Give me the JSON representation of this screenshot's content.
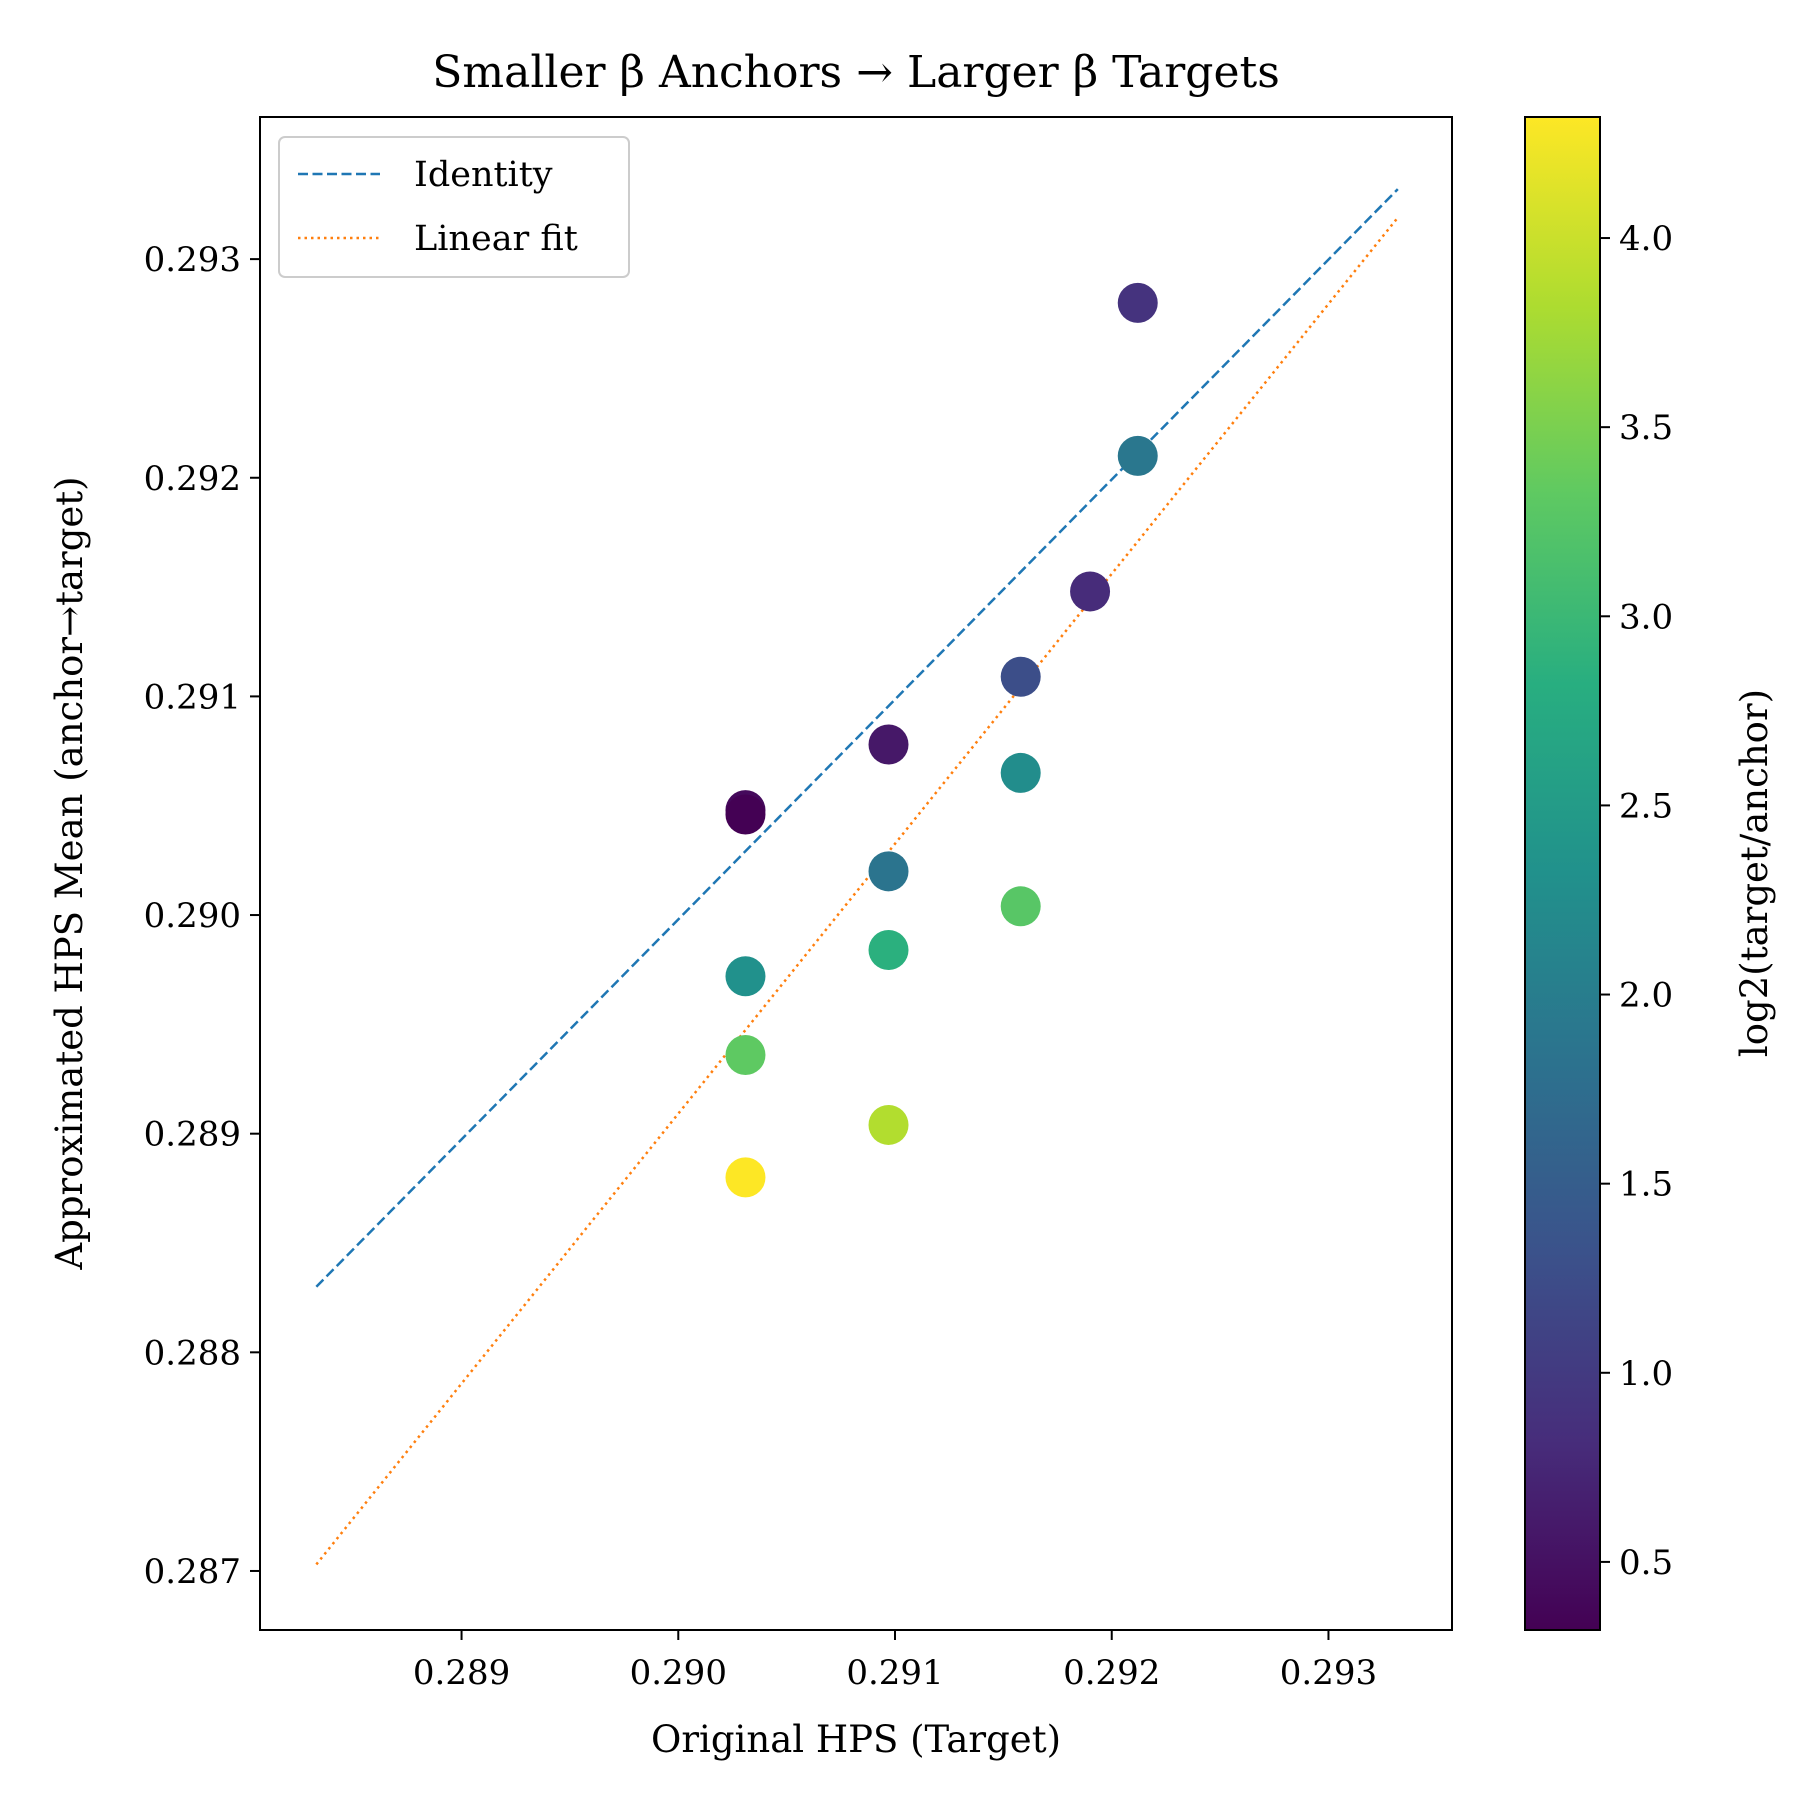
{
  "chart_data": {
    "type": "scatter",
    "title": "Smaller β Anchors → Larger β Targets",
    "xlabel": "Original HPS (Target)",
    "ylabel": "Approximated HPS Mean (anchor→target)",
    "xlim": [
      0.28807,
      0.29357
    ],
    "ylim": [
      0.28673,
      0.29365
    ],
    "xticks": [
      0.289,
      0.29,
      0.291,
      0.292,
      0.293
    ],
    "xtick_labels": [
      "0.289",
      "0.290",
      "0.291",
      "0.292",
      "0.293"
    ],
    "yticks": [
      0.287,
      0.288,
      0.289,
      0.29,
      0.291,
      0.292,
      0.293
    ],
    "ytick_labels": [
      "0.287",
      "0.288",
      "0.289",
      "0.290",
      "0.291",
      "0.292",
      "0.293"
    ],
    "colorbar": {
      "label": "log2(target/anchor)",
      "colormap": "viridis",
      "range": [
        0.32,
        4.32
      ],
      "ticks": [
        0.5,
        1.0,
        1.5,
        2.0,
        2.5,
        3.0,
        3.5,
        4.0
      ],
      "tick_labels": [
        "0.5",
        "1.0",
        "1.5",
        "2.0",
        "2.5",
        "3.0",
        "3.5",
        "4.0"
      ]
    },
    "points": [
      {
        "x": 0.29031,
        "y": 0.29048,
        "c": 0.42
      },
      {
        "x": 0.29031,
        "y": 0.29046,
        "c": 0.32
      },
      {
        "x": 0.29031,
        "y": 0.28972,
        "c": 2.32
      },
      {
        "x": 0.29031,
        "y": 0.28936,
        "c": 3.32
      },
      {
        "x": 0.29031,
        "y": 0.2888,
        "c": 4.32
      },
      {
        "x": 0.29097,
        "y": 0.29078,
        "c": 0.58
      },
      {
        "x": 0.29097,
        "y": 0.2902,
        "c": 1.85
      },
      {
        "x": 0.29097,
        "y": 0.28984,
        "c": 2.85
      },
      {
        "x": 0.29097,
        "y": 0.28904,
        "c": 3.85
      },
      {
        "x": 0.29158,
        "y": 0.29109,
        "c": 1.26
      },
      {
        "x": 0.29158,
        "y": 0.29065,
        "c": 2.26
      },
      {
        "x": 0.29158,
        "y": 0.29004,
        "c": 3.26
      },
      {
        "x": 0.2919,
        "y": 0.29148,
        "c": 0.81
      },
      {
        "x": 0.29212,
        "y": 0.2928,
        "c": 0.9
      },
      {
        "x": 0.29212,
        "y": 0.2921,
        "c": 1.9
      }
    ],
    "lines": [
      {
        "name": "Identity",
        "color": "#1f77b4",
        "dash": "dashed",
        "x": [
          0.28833,
          0.29332
        ],
        "y": [
          0.2883,
          0.29332
        ]
      },
      {
        "name": "Linear fit",
        "color": "#ff7f0e",
        "dash": "dotted",
        "x": [
          0.28833,
          0.29332
        ],
        "y": [
          0.28703,
          0.29319
        ]
      }
    ],
    "legend_position": "upper-left"
  }
}
